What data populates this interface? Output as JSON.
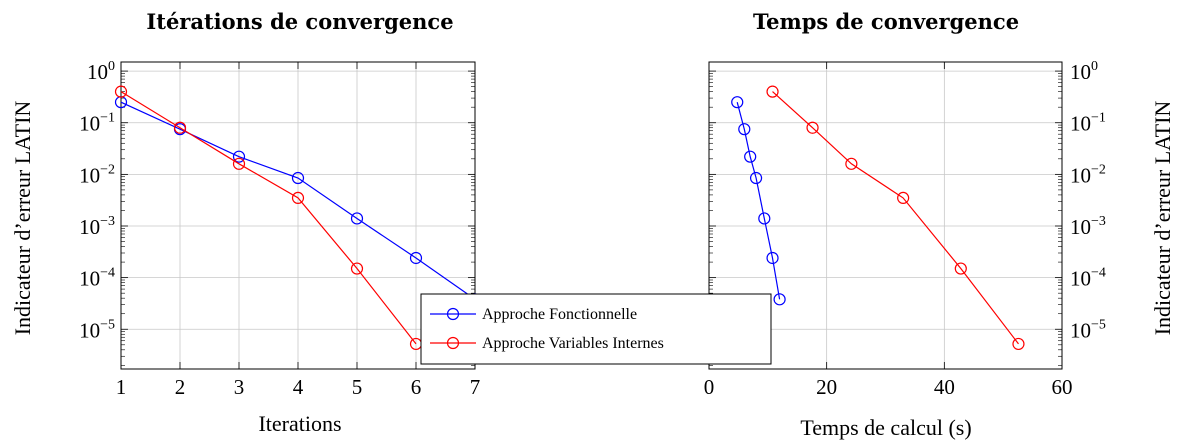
{
  "chart_data": [
    {
      "type": "line",
      "title": "Itérations de convergence",
      "xlabel": "Iterations",
      "ylabel": "Indicateur d’erreur LATIN",
      "y_scale": "log",
      "xlim": [
        1,
        7
      ],
      "ylim": [
        1.7e-06,
        1.5
      ],
      "x_ticks": [
        "1",
        "2",
        "3",
        "4",
        "5",
        "6",
        "7"
      ],
      "y_ticks": [
        {
          "base": "10",
          "exp": "0"
        },
        {
          "base": "10",
          "exp": "−1"
        },
        {
          "base": "10",
          "exp": "−2"
        },
        {
          "base": "10",
          "exp": "−3"
        },
        {
          "base": "10",
          "exp": "−4"
        },
        {
          "base": "10",
          "exp": "−5"
        }
      ],
      "grid": true,
      "y_axis_side": "left",
      "series": [
        {
          "name": "Approche Fonctionnelle",
          "color": "#0000ff",
          "x": [
            1,
            2,
            3,
            4,
            5,
            6,
            7
          ],
          "y": [
            0.25,
            0.075,
            0.022,
            0.0085,
            0.0014,
            0.00024,
            3.8e-05
          ]
        },
        {
          "name": "Approche Variables Internes",
          "color": "#ff0000",
          "x": [
            1,
            2,
            3,
            4,
            5,
            6
          ],
          "y": [
            0.4,
            0.08,
            0.016,
            0.0035,
            0.00015,
            5.2e-06
          ]
        }
      ]
    },
    {
      "type": "line",
      "title": "Temps de convergence",
      "xlabel": "Temps de calcul (s)",
      "ylabel": "Indicateur d’erreur LATIN",
      "y_scale": "log",
      "xlim": [
        0,
        60
      ],
      "ylim": [
        1.7e-06,
        1.5
      ],
      "x_ticks": [
        "0",
        "20",
        "40",
        "60"
      ],
      "y_ticks": [
        {
          "base": "10",
          "exp": "0"
        },
        {
          "base": "10",
          "exp": "−1"
        },
        {
          "base": "10",
          "exp": "−2"
        },
        {
          "base": "10",
          "exp": "−3"
        },
        {
          "base": "10",
          "exp": "−4"
        },
        {
          "base": "10",
          "exp": "−5"
        }
      ],
      "grid": true,
      "y_axis_side": "right",
      "series": [
        {
          "name": "Approche Fonctionnelle",
          "color": "#0000ff",
          "x": [
            4.8,
            6.0,
            7.0,
            8.0,
            9.4,
            10.8,
            12.0
          ],
          "y": [
            0.25,
            0.075,
            0.022,
            0.0085,
            0.0014,
            0.00024,
            3.8e-05
          ]
        },
        {
          "name": "Approche Variables Internes",
          "color": "#ff0000",
          "x": [
            10.8,
            17.6,
            24.2,
            33.0,
            42.8,
            52.6
          ],
          "y": [
            0.4,
            0.08,
            0.016,
            0.0035,
            0.00015,
            5.2e-06
          ]
        }
      ]
    }
  ],
  "legend": {
    "placement": "bottom-center",
    "entries": [
      "Approche Fonctionnelle",
      "Approche Variables Internes"
    ]
  }
}
